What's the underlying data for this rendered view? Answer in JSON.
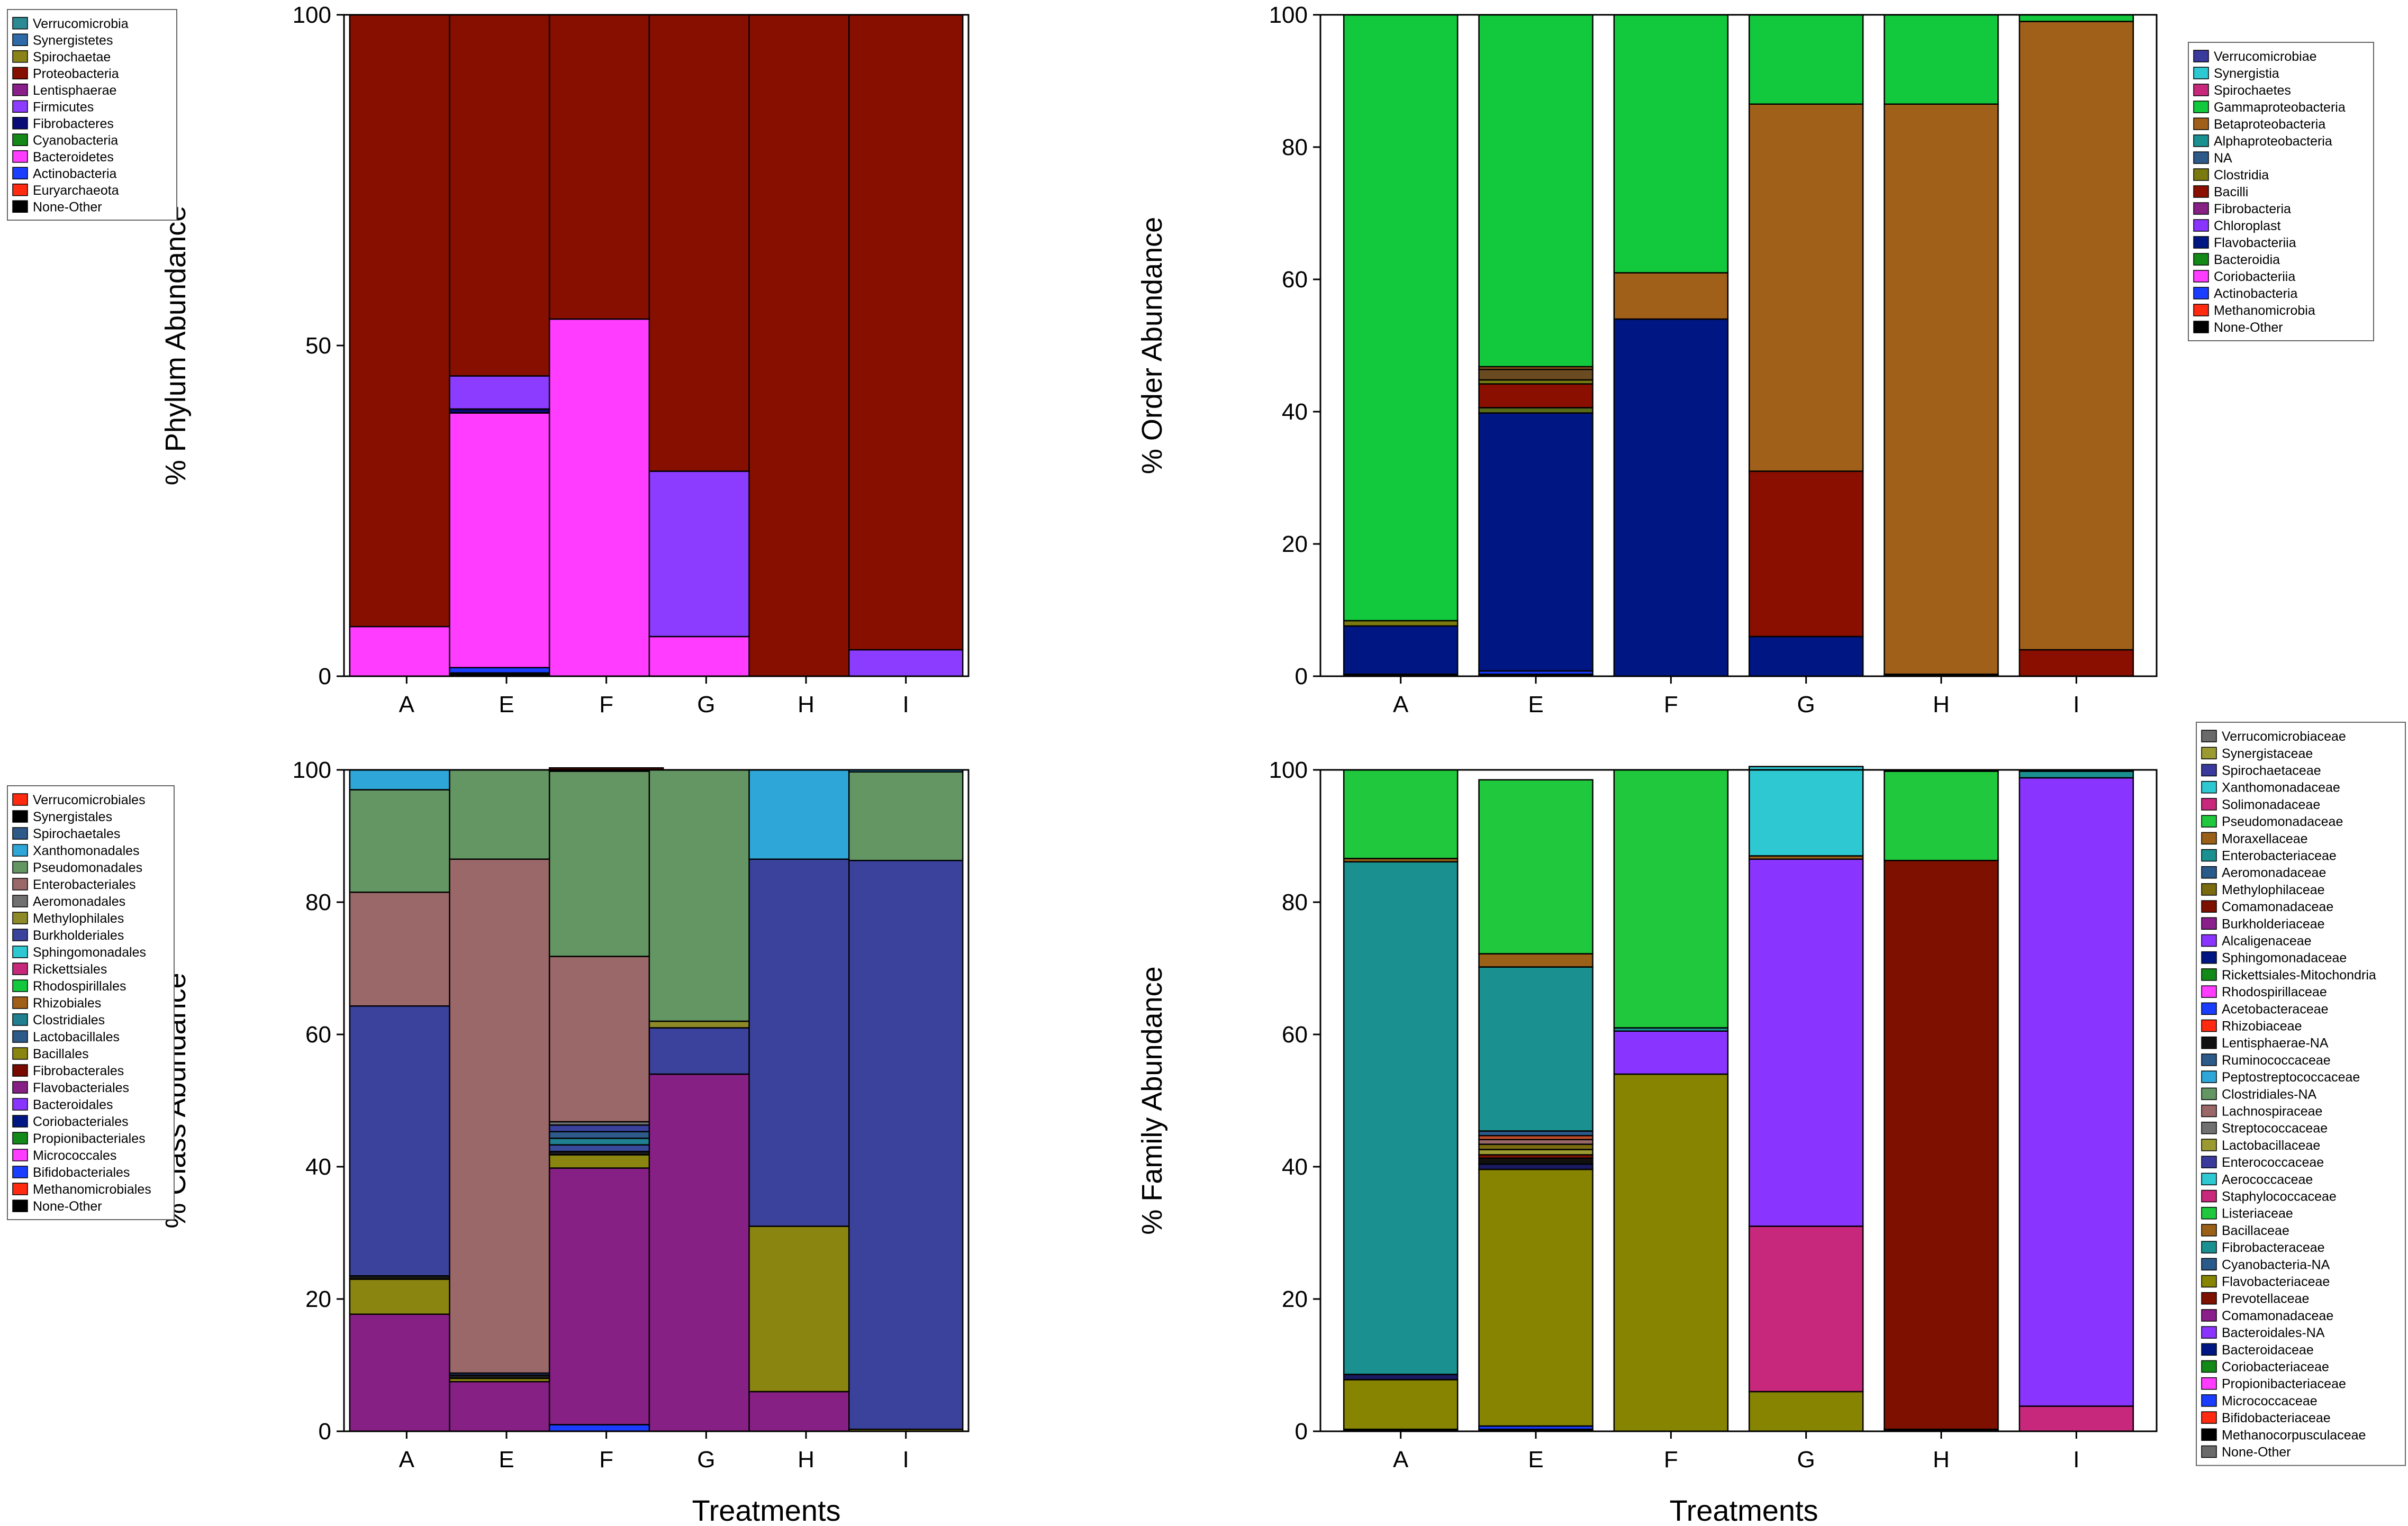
{
  "figure": {
    "x_title": "Treatments"
  },
  "chart_data": [
    {
      "id": "phylum",
      "type": "bar",
      "stacked": true,
      "ylabel": "% Phylum Abundance",
      "xlabel": "",
      "ylim": [
        0,
        100
      ],
      "yticks": [
        0,
        50,
        100
      ],
      "categories": [
        "A",
        "E",
        "F",
        "G",
        "H",
        "I"
      ],
      "legend_position": "left",
      "legend": [
        "Verrucomicrobia",
        "Synergistetes",
        "Spirochaetae",
        "Proteobacteria",
        "Lentisphaerae",
        "Firmicutes",
        "Fibrobacteres",
        "Cyanobacteria",
        "Bacteroidetes",
        "Actinobacteria",
        "Euryarchaeota",
        "None-Other"
      ],
      "series": [
        {
          "name": "None-Other",
          "color": "#000000",
          "values": [
            0,
            0.5,
            0,
            0,
            0,
            0
          ]
        },
        {
          "name": "Euryarchaeota",
          "color": "#ff2a10",
          "values": [
            0,
            0,
            0,
            0,
            0,
            0
          ]
        },
        {
          "name": "Actinobacteria",
          "color": "#1a3dff",
          "values": [
            0,
            0.8,
            0,
            0,
            0,
            0
          ]
        },
        {
          "name": "Bacteroidetes",
          "color": "#ff3cff",
          "values": [
            7.5,
            38.5,
            54,
            6,
            0,
            0
          ]
        },
        {
          "name": "Cyanobacteria",
          "color": "#138a18",
          "values": [
            0,
            0,
            0,
            0,
            0,
            0
          ]
        },
        {
          "name": "Fibrobacteres",
          "color": "#0b0b78",
          "values": [
            0,
            0.6,
            0,
            0,
            0,
            0
          ]
        },
        {
          "name": "Firmicutes",
          "color": "#8c3cff",
          "values": [
            0,
            5,
            0,
            25,
            0,
            4
          ]
        },
        {
          "name": "Lentisphaerae",
          "color": "#8a1e8a",
          "values": [
            0,
            0,
            0,
            0,
            0,
            0
          ]
        },
        {
          "name": "Proteobacteria",
          "color": "#870f00",
          "values": [
            92.5,
            54.6,
            46,
            69,
            100,
            96
          ]
        }
      ]
    },
    {
      "id": "order",
      "type": "bar",
      "stacked": true,
      "ylabel": "% Order Abundance",
      "xlabel": "",
      "ylim": [
        0,
        100
      ],
      "yticks": [
        0,
        20,
        40,
        60,
        80,
        100
      ],
      "categories": [
        "A",
        "E",
        "F",
        "G",
        "H",
        "I"
      ],
      "legend_position": "right",
      "legend": [
        "Verrucomicrobiae",
        "Synergistia",
        "Spirochaetes",
        "Gammaproteobacteria",
        "Betaproteobacteria",
        "Alphaproteobacteria",
        "NA",
        "Clostridia",
        "Bacilli",
        "Fibrobacteria",
        "Chloroplast",
        "Flavobacteriia",
        "Bacteroidia",
        "Coriobacteriia",
        "Actinobacteria",
        "Methanomicrobia",
        "None-Other"
      ],
      "series": [
        {
          "name": "None-Other",
          "color": "#000000",
          "values": [
            0.3,
            0.3,
            0,
            0,
            0.3,
            0
          ]
        },
        {
          "name": "Actinobacteria",
          "color": "#1a3dff",
          "values": [
            0,
            0.5,
            0,
            0,
            0,
            0
          ]
        },
        {
          "name": "Flavobacteriia",
          "color": "#001783",
          "values": [
            7.3,
            39,
            54,
            6,
            0,
            0
          ]
        },
        {
          "name": "Bacteroidia",
          "color": "#556b1a",
          "values": [
            0,
            0.8,
            0,
            0,
            0,
            0
          ]
        },
        {
          "name": "Bacilli",
          "color": "#8a0f00",
          "values": [
            0,
            3.6,
            0,
            25,
            0,
            4
          ]
        },
        {
          "name": "Clostridia",
          "color": "#7a7a10",
          "values": [
            0.8,
            0.6,
            0,
            0,
            0,
            0
          ]
        },
        {
          "name": "NA",
          "color": "#6a4a20",
          "values": [
            0,
            1.6,
            0,
            0,
            0,
            0
          ]
        },
        {
          "name": "Betaproteobacteria",
          "color": "#a0601a",
          "values": [
            0,
            0.4,
            7,
            55.5,
            86.2,
            95
          ]
        },
        {
          "name": "Gammaproteobacteria",
          "color": "#12c83c",
          "values": [
            91.6,
            53.2,
            39,
            13.5,
            13.5,
            1
          ]
        }
      ]
    },
    {
      "id": "class",
      "type": "bar",
      "stacked": true,
      "ylabel": "% Class Abundance",
      "xlabel": "Treatments",
      "ylim": [
        0,
        100
      ],
      "yticks": [
        0,
        20,
        40,
        60,
        80,
        100
      ],
      "categories": [
        "A",
        "E",
        "F",
        "G",
        "H",
        "I"
      ],
      "legend_position": "left",
      "legend": [
        "Verrucomicrobiales",
        "Synergistales",
        "Spirochaetales",
        "Xanthomonadales",
        "Pseudomonadales",
        "Enterobacteriales",
        "Aeromonadales",
        "Methylophilales",
        "Burkholderiales",
        "Sphingomonadales",
        "Rickettsiales",
        "Rhodospirillales",
        "Rhizobiales",
        "Clostridiales",
        "Lactobacillales",
        "Bacillales",
        "Fibrobacterales",
        "Flavobacteriales",
        "Bacteroidales",
        "Coriobacteriales",
        "Propionibacteriales",
        "Micrococcales",
        "Bifidobacteriales",
        "Methanomicrobiales",
        "None-Other"
      ],
      "series": [
        {
          "name": "Bifidobacteriales",
          "color": "#1a3dff",
          "values": [
            0,
            0,
            1,
            0,
            0,
            0
          ]
        },
        {
          "name": "Flavobacteriales",
          "color": "#872085",
          "values": [
            17.7,
            7.5,
            38.8,
            54,
            6,
            0
          ]
        },
        {
          "name": "Bacillales",
          "color": "#8a8410",
          "values": [
            5.3,
            0.5,
            2,
            0,
            25,
            0.3
          ]
        },
        {
          "name": "None-Other",
          "color": "#1a1a1a",
          "values": [
            0.5,
            0.5,
            0.5,
            0,
            0,
            0
          ]
        },
        {
          "name": "Lactobacillales",
          "color": "#3a4a9a",
          "values": [
            0,
            0.3,
            1,
            0,
            0,
            0
          ]
        },
        {
          "name": "Clostridiales",
          "color": "#208090",
          "values": [
            0,
            0,
            1,
            0,
            0,
            0
          ]
        },
        {
          "name": "Spirochaetales",
          "color": "#2e5a8a",
          "values": [
            0,
            0,
            1,
            0,
            0,
            0
          ]
        },
        {
          "name": "Burkholderiales",
          "color": "#3a429c",
          "values": [
            40.8,
            0,
            1,
            7,
            55.5,
            86
          ]
        },
        {
          "name": "Aeromonadales",
          "color": "#707070",
          "values": [
            0,
            0,
            0.5,
            0,
            0,
            0
          ]
        },
        {
          "name": "Methylophilales",
          "color": "#8e8a28",
          "values": [
            0,
            0,
            0,
            1,
            0,
            0
          ]
        },
        {
          "name": "Enterobacteriales",
          "color": "#9a6868",
          "values": [
            17.2,
            77.7,
            25,
            0,
            0,
            0
          ]
        },
        {
          "name": "Pseudomonadales",
          "color": "#649664",
          "values": [
            15.5,
            13.5,
            28,
            38,
            0,
            13.4
          ]
        },
        {
          "name": "Fibrobacterales",
          "color": "#780a00",
          "values": [
            0,
            0,
            0.5,
            0,
            0,
            0
          ]
        },
        {
          "name": "Xanthomonadales",
          "color": "#2ea6d8",
          "values": [
            3,
            0,
            0,
            0,
            13.5,
            0.3
          ]
        }
      ]
    },
    {
      "id": "family",
      "type": "bar",
      "stacked": true,
      "ylabel": "% Family Abundance",
      "xlabel": "Treatments",
      "ylim": [
        0,
        100
      ],
      "yticks": [
        0,
        20,
        40,
        60,
        80,
        100
      ],
      "categories": [
        "A",
        "E",
        "F",
        "G",
        "H",
        "I"
      ],
      "legend_position": "right",
      "legend": [
        "Verrucomicrobiaceae",
        "Synergistaceae",
        "Spirochaetaceae",
        "Xanthomonadaceae",
        "Solimonadaceae",
        "Pseudomonadaceae",
        "Moraxellaceae",
        "Enterobacteriaceae",
        "Aeromonadaceae",
        "Methylophilaceae",
        "Comamonadaceae",
        "Burkholderiaceae",
        "Alcaligenaceae",
        "Sphingomonadaceae",
        "Rickettsiales-Mitochondria",
        "Rhodospirillaceae",
        "Acetobacteraceae",
        "Rhizobiaceae",
        "Lentisphaerae-NA",
        "Ruminococcaceae",
        "Peptostreptococcaceae",
        "Clostridiales-NA",
        "Lachnospiraceae",
        "Streptococcaceae",
        "Lactobacillaceae",
        "Enterococcaceae",
        "Aerococcaceae",
        "Staphylococcaceae",
        "Listeriaceae",
        "Bacillaceae",
        "Fibrobacteraceae",
        "Cyanobacteria-NA",
        "Flavobacteriaceae",
        "Prevotellaceae",
        "Comamonadaceae",
        "Bacteroidales-NA",
        "Bacteroidaceae",
        "Coriobacteriaceae",
        "Propionibacteriaceae",
        "Micrococcaceae",
        "Bifidobacteriaceae",
        "Methanocorpusculaceae",
        "None-Other"
      ],
      "series": [
        {
          "name": "None-Other",
          "color": "#000000",
          "values": [
            0.3,
            0.3,
            0,
            0,
            0.3,
            0
          ]
        },
        {
          "name": "Bifidobacteriaceae",
          "color": "#1a3dff",
          "values": [
            0,
            0.5,
            0,
            0,
            0,
            0
          ]
        },
        {
          "name": "Flavobacteriaceae",
          "color": "#868400",
          "values": [
            7.5,
            38.8,
            54,
            6,
            0,
            0
          ]
        },
        {
          "name": "Staphylococcaceae",
          "color": "#c8287c",
          "values": [
            0,
            0,
            0,
            25,
            0,
            3.8
          ]
        },
        {
          "name": "Coriobacteriaceae",
          "color": "#1a1a60",
          "values": [
            0.8,
            0.8,
            0,
            0,
            0,
            0
          ]
        },
        {
          "name": "Lentisphaerae-NA",
          "color": "#101010",
          "values": [
            0,
            0.9,
            0,
            0,
            0,
            0
          ]
        },
        {
          "name": "Comamonadaceae",
          "color": "#7e1000",
          "values": [
            0,
            0.5,
            0,
            0,
            86,
            0
          ]
        },
        {
          "name": "Synergistaceae",
          "color": "#9a9a30",
          "values": [
            0,
            0.8,
            0,
            0,
            0,
            0
          ]
        },
        {
          "name": "Methylophilaceae",
          "color": "#7a6a10",
          "values": [
            0,
            0.8,
            0,
            0,
            0,
            0
          ]
        },
        {
          "name": "Lachnospiraceae",
          "color": "#9a6868",
          "values": [
            0,
            0.7,
            0,
            0,
            0,
            0
          ]
        },
        {
          "name": "Rhizobiaceae",
          "color": "#bd4d2a",
          "values": [
            0,
            0.6,
            0,
            0,
            0,
            0
          ]
        },
        {
          "name": "Aeromonadaceae",
          "color": "#2a5a8a",
          "values": [
            0,
            0.7,
            0,
            0,
            0,
            0
          ]
        },
        {
          "name": "Alcaligenaceae",
          "color": "#8a35ff",
          "values": [
            0,
            0,
            6.5,
            55.5,
            0,
            95
          ]
        },
        {
          "name": "Enterobacteriaceae",
          "color": "#1a9090",
          "values": [
            77.5,
            24.8,
            0.5,
            0,
            0,
            1
          ]
        },
        {
          "name": "Moraxellaceae",
          "color": "#9a6018",
          "values": [
            0.5,
            2,
            0,
            0.5,
            0,
            0
          ]
        },
        {
          "name": "Pseudomonadaceae",
          "color": "#1fc83c",
          "values": [
            13.4,
            26.3,
            39,
            0,
            13.5,
            0
          ]
        },
        {
          "name": "Xanthomonadaceae",
          "color": "#2ec8d2",
          "values": [
            0,
            0,
            0,
            13.5,
            0.2,
            0.2
          ]
        }
      ]
    }
  ]
}
